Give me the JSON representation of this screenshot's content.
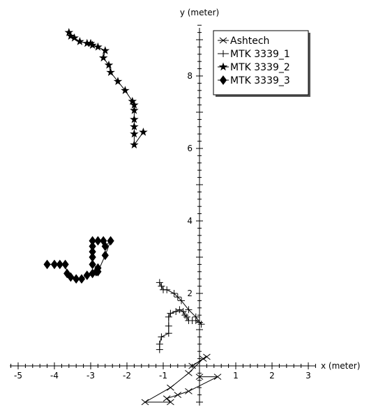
{
  "chart_data": {
    "type": "scatter",
    "title": "",
    "xlabel": "x (meter)",
    "ylabel": "y (meter)",
    "xlim": [
      -5.3,
      3.3
    ],
    "ylim": [
      -1.1,
      9.5
    ],
    "xticks": [
      -5,
      -4,
      -3,
      -2,
      -1,
      1,
      2,
      3
    ],
    "yticks": [
      2,
      4,
      6,
      8
    ],
    "grid": false,
    "legend_position": "top-right",
    "series": [
      {
        "name": "Ashtech",
        "marker": "x",
        "connected": true,
        "x": [
          0.0,
          0.5,
          -0.3,
          -0.6,
          -0.9,
          -0.8,
          -1.5,
          -0.8,
          -0.3,
          0.1,
          -0.2,
          0.2
        ],
        "y": [
          -0.3,
          -0.3,
          -0.7,
          -0.8,
          -0.9,
          -1.0,
          -1.0,
          -0.6,
          -0.2,
          0.2,
          0.0,
          0.25
        ]
      },
      {
        "name": "MTK 3339_1",
        "marker": "+",
        "connected": true,
        "x": [
          -1.1,
          -1.1,
          -1.05,
          -0.85,
          -0.85,
          -0.85,
          -0.8,
          -0.65,
          -0.55,
          -0.45,
          -0.4,
          -0.35,
          -0.3,
          -0.2,
          -0.1,
          0.0,
          0.05,
          -0.1,
          -0.3,
          -0.5,
          -0.6,
          -0.7,
          -0.9,
          -1.0,
          -1.05,
          -1.1
        ],
        "y": [
          0.45,
          0.6,
          0.8,
          0.9,
          1.1,
          1.35,
          1.45,
          1.5,
          1.55,
          1.5,
          1.4,
          1.35,
          1.25,
          1.25,
          1.25,
          1.2,
          1.15,
          1.35,
          1.55,
          1.8,
          1.9,
          2.0,
          2.1,
          2.1,
          2.2,
          2.3
        ]
      },
      {
        "name": "MTK 3339_2",
        "marker": "star",
        "connected": true,
        "x": [
          -1.55,
          -1.8,
          -1.8,
          -1.8,
          -1.8,
          -1.8,
          -1.8,
          -1.85,
          -2.05,
          -2.25,
          -2.45,
          -2.5,
          -2.65,
          -2.6,
          -2.8,
          -2.95,
          -3.0,
          -3.1,
          -3.3,
          -3.45,
          -3.55,
          -3.6
        ],
        "y": [
          6.45,
          6.1,
          6.4,
          6.6,
          6.8,
          7.05,
          7.2,
          7.3,
          7.6,
          7.85,
          8.1,
          8.3,
          8.5,
          8.7,
          8.8,
          8.85,
          8.9,
          8.9,
          8.95,
          9.05,
          9.1,
          9.2
        ],
        "symbols_only": true
      },
      {
        "name": "MTK 3339_3",
        "marker": "diamond",
        "connected": true,
        "symbols_only": true,
        "x": [
          -4.2,
          -4.0,
          -3.85,
          -3.7,
          -3.65,
          -3.55,
          -3.4,
          -3.25,
          -3.1,
          -2.95,
          -2.85,
          -2.8,
          -2.95,
          -2.95,
          -2.95,
          -2.95,
          -2.95,
          -2.8,
          -2.65,
          -2.6,
          -2.45,
          -2.6,
          -2.8
        ],
        "y": [
          2.8,
          2.8,
          2.8,
          2.8,
          2.55,
          2.45,
          2.4,
          2.4,
          2.5,
          2.55,
          2.6,
          2.7,
          2.8,
          3.0,
          3.15,
          3.3,
          3.45,
          3.45,
          3.45,
          3.3,
          3.45,
          3.05,
          2.6
        ]
      }
    ]
  }
}
